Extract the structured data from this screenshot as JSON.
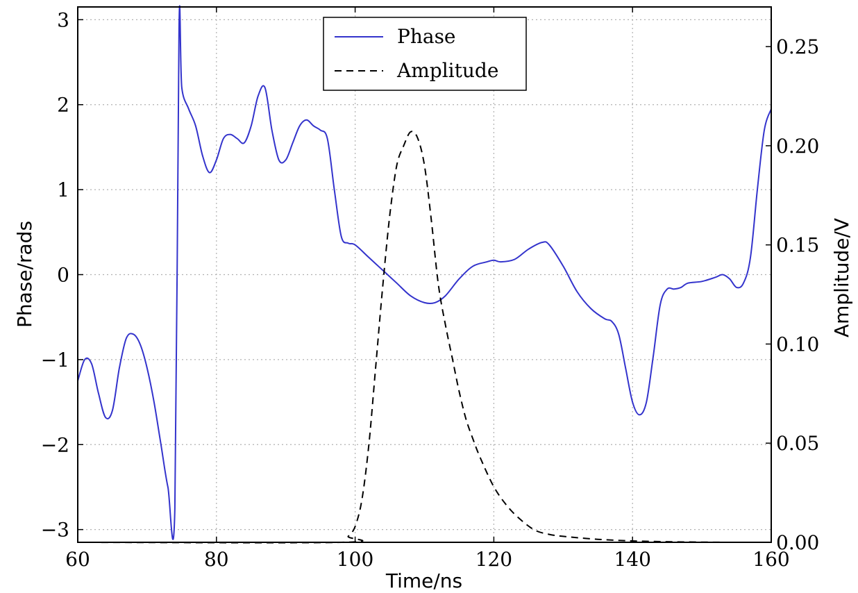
{
  "chart_data": {
    "type": "line",
    "xlabel": "Time/ns",
    "ylabel_left": "Phase/rads",
    "ylabel_right": "Amplitude/V",
    "xlim": [
      60,
      160
    ],
    "ylim_left": [
      -3.15,
      3.15
    ],
    "ylim_right": [
      0,
      0.27
    ],
    "x_ticks": [
      60,
      80,
      100,
      120,
      140,
      160
    ],
    "y_ticks_left": [
      -3,
      -2,
      -1,
      0,
      1,
      2,
      3
    ],
    "y_ticks_left_labels": [
      "−3",
      "−2",
      "−1",
      "0",
      "1",
      "2",
      "3"
    ],
    "y_ticks_right": [
      0,
      0.05,
      0.1,
      0.15,
      0.2,
      0.25
    ],
    "y_ticks_right_labels": [
      "0.00",
      "0.05",
      "0.10",
      "0.15",
      "0.20",
      "0.25"
    ],
    "grid": true,
    "legend_position": "top-center",
    "series": [
      {
        "name": "Phase",
        "axis": "left",
        "style": "solid",
        "color": "#3333cc",
        "x": [
          60,
          61,
          62,
          63,
          64,
          65,
          66,
          67,
          68,
          69,
          70,
          71,
          72,
          73,
          74,
          74.6,
          75,
          76,
          77,
          78,
          79,
          80,
          81,
          82,
          83,
          84,
          85,
          86,
          87,
          88,
          89,
          90,
          91,
          92,
          93,
          94,
          95,
          96,
          97,
          98,
          99,
          100,
          102,
          104,
          106,
          108,
          110,
          111.5,
          113,
          115,
          117,
          119,
          120,
          121,
          123,
          125,
          127,
          128,
          130,
          132,
          134,
          136,
          137,
          138,
          139,
          140,
          141,
          142,
          143,
          144,
          145,
          146,
          147,
          148,
          150,
          152,
          153,
          154,
          155,
          156,
          157,
          158,
          159,
          160
        ],
        "y": [
          -1.25,
          -1.0,
          -1.05,
          -1.4,
          -1.68,
          -1.6,
          -1.1,
          -0.75,
          -0.7,
          -0.82,
          -1.1,
          -1.5,
          -2.0,
          -2.5,
          -2.75,
          2.9,
          2.2,
          1.95,
          1.75,
          1.4,
          1.2,
          1.35,
          1.6,
          1.65,
          1.6,
          1.55,
          1.75,
          2.1,
          2.2,
          1.7,
          1.35,
          1.35,
          1.55,
          1.75,
          1.82,
          1.75,
          1.7,
          1.6,
          1.0,
          0.45,
          0.37,
          0.35,
          0.2,
          0.05,
          -0.1,
          -0.25,
          -0.33,
          -0.33,
          -0.25,
          -0.05,
          0.1,
          0.15,
          0.17,
          0.15,
          0.18,
          0.3,
          0.38,
          0.35,
          0.1,
          -0.2,
          -0.4,
          -0.52,
          -0.55,
          -0.7,
          -1.1,
          -1.5,
          -1.65,
          -1.5,
          -0.95,
          -0.35,
          -0.17,
          -0.17,
          -0.15,
          -0.1,
          -0.08,
          -0.03,
          0.0,
          -0.05,
          -0.15,
          -0.1,
          0.2,
          1.0,
          1.7,
          1.95
        ]
      },
      {
        "name": "Amplitude",
        "axis": "right",
        "style": "dashed",
        "color": "#000000",
        "x": [
          60,
          98,
          99,
          100,
          101,
          102,
          103,
          104,
          105,
          106,
          107,
          108,
          109,
          110,
          111,
          112,
          113,
          114,
          115,
          116,
          117,
          118,
          120,
          122,
          124,
          126,
          128,
          130,
          135,
          140,
          145,
          150,
          155,
          160
        ],
        "y": [
          0.0,
          0.0,
          0.003,
          0.008,
          0.022,
          0.05,
          0.09,
          0.13,
          0.165,
          0.19,
          0.2,
          0.207,
          0.204,
          0.19,
          0.162,
          0.13,
          0.11,
          0.093,
          0.076,
          0.062,
          0.052,
          0.043,
          0.028,
          0.018,
          0.011,
          0.006,
          0.004,
          0.003,
          0.0015,
          0.0007,
          0.0003,
          0.0001,
          0.0,
          0.0
        ]
      }
    ]
  }
}
